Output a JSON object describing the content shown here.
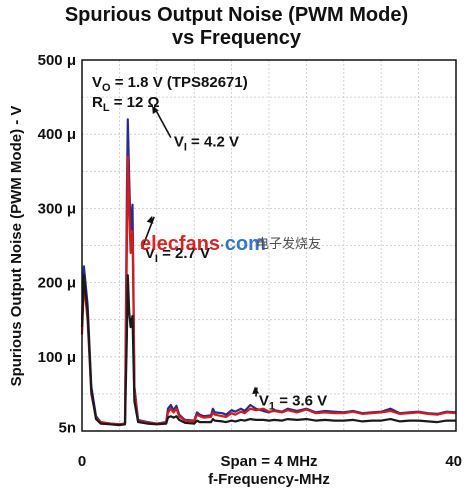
{
  "chart_data": {
    "type": "line",
    "title": [
      "Spurious Output Noise (PWM Mode)",
      "vs Frequency"
    ],
    "ylabel": "Spurious Output Noise (PWM Mode) - V",
    "xlabel": "f-Frequency-MHz",
    "span_label": "Span = 4 MHz",
    "xlim": [
      0,
      40
    ],
    "ylim": [
      0,
      500
    ],
    "y_ticks": [
      {
        "value": 500,
        "label": "500 μ"
      },
      {
        "value": 400,
        "label": "400 μ"
      },
      {
        "value": 300,
        "label": "300 μ"
      },
      {
        "value": 200,
        "label": "200 μ"
      },
      {
        "value": 100,
        "label": "100 μ"
      },
      {
        "value": 5,
        "label": "5n"
      }
    ],
    "x_ticks": [
      {
        "value": 0,
        "label": "0"
      },
      {
        "value": 40,
        "label": "40"
      }
    ],
    "grid": true,
    "conditions": [
      {
        "main": "V",
        "sub": "O",
        "rest": " = 1.8 V (TPS82671)"
      },
      {
        "main": "R",
        "sub": "L",
        "rest": " = 12 Ω"
      }
    ],
    "annotations": [
      {
        "main": "V",
        "sub": "I",
        "rest": " = 4.2 V",
        "x": 9.5,
        "y": 390,
        "tx": 7.5,
        "ty": 438
      },
      {
        "main": "V",
        "sub": "I",
        "rest": " = 2.7 V",
        "x": 6.4,
        "y": 240,
        "tx": 7.5,
        "ty": 290
      },
      {
        "main": "V",
        "sub": "1",
        "rest": " = 3.6 V",
        "x": 18.6,
        "y": 41,
        "tx": 18.5,
        "ty": 60
      }
    ],
    "series": [
      {
        "color": "#2b2b8f",
        "points": [
          [
            0,
            150
          ],
          [
            0.2,
            222
          ],
          [
            0.6,
            170
          ],
          [
            1,
            60
          ],
          [
            1.5,
            20
          ],
          [
            2,
            12
          ],
          [
            3,
            10
          ],
          [
            4,
            9
          ],
          [
            4.6,
            10
          ],
          [
            4.8,
            320
          ],
          [
            4.9,
            420
          ],
          [
            5.05,
            340
          ],
          [
            5.2,
            270
          ],
          [
            5.3,
            290
          ],
          [
            5.4,
            305
          ],
          [
            5.5,
            200
          ],
          [
            5.6,
            60
          ],
          [
            6,
            15
          ],
          [
            7,
            12
          ],
          [
            8,
            10
          ],
          [
            9,
            12
          ],
          [
            9.2,
            30
          ],
          [
            9.5,
            35
          ],
          [
            9.8,
            28
          ],
          [
            10.1,
            34
          ],
          [
            10.4,
            22
          ],
          [
            11,
            15
          ],
          [
            12,
            14
          ],
          [
            12.3,
            25
          ],
          [
            12.6,
            22
          ],
          [
            13,
            20
          ],
          [
            13.8,
            21
          ],
          [
            14,
            30
          ],
          [
            14.2,
            25
          ],
          [
            15,
            24
          ],
          [
            15.4,
            22
          ],
          [
            16,
            28
          ],
          [
            16.4,
            26
          ],
          [
            17,
            30
          ],
          [
            17.4,
            27
          ],
          [
            18,
            35
          ],
          [
            18.6,
            30
          ],
          [
            19.4,
            27
          ],
          [
            20,
            25
          ],
          [
            20.6,
            28
          ],
          [
            21.4,
            26
          ],
          [
            22,
            30
          ],
          [
            23,
            27
          ],
          [
            24,
            30
          ],
          [
            25,
            25
          ],
          [
            26,
            27
          ],
          [
            27,
            26
          ],
          [
            28,
            25
          ],
          [
            29,
            27
          ],
          [
            30,
            24
          ],
          [
            31,
            25
          ],
          [
            32,
            26
          ],
          [
            33,
            30
          ],
          [
            34,
            24
          ],
          [
            35,
            25
          ],
          [
            36,
            26
          ],
          [
            37,
            24
          ],
          [
            38,
            23
          ],
          [
            39,
            26
          ],
          [
            40,
            25
          ]
        ]
      },
      {
        "color": "#d21c1c",
        "points": [
          [
            0,
            130
          ],
          [
            0.2,
            200
          ],
          [
            0.6,
            150
          ],
          [
            1,
            50
          ],
          [
            1.5,
            18
          ],
          [
            2,
            12
          ],
          [
            3,
            10
          ],
          [
            4,
            9
          ],
          [
            4.6,
            10
          ],
          [
            4.8,
            250
          ],
          [
            4.9,
            370
          ],
          [
            5.05,
            300
          ],
          [
            5.2,
            240
          ],
          [
            5.3,
            260
          ],
          [
            5.4,
            270
          ],
          [
            5.5,
            180
          ],
          [
            5.6,
            55
          ],
          [
            6,
            14
          ],
          [
            7,
            11
          ],
          [
            8,
            10
          ],
          [
            9,
            11
          ],
          [
            9.2,
            25
          ],
          [
            9.5,
            30
          ],
          [
            9.8,
            25
          ],
          [
            10.1,
            30
          ],
          [
            10.4,
            20
          ],
          [
            11,
            14
          ],
          [
            12,
            13
          ],
          [
            12.3,
            22
          ],
          [
            12.6,
            20
          ],
          [
            13,
            18
          ],
          [
            13.8,
            19
          ],
          [
            14,
            25
          ],
          [
            14.2,
            22
          ],
          [
            15,
            20
          ],
          [
            15.4,
            19
          ],
          [
            16,
            24
          ],
          [
            16.4,
            22
          ],
          [
            17,
            26
          ],
          [
            17.4,
            24
          ],
          [
            18,
            30
          ],
          [
            18.6,
            28
          ],
          [
            19.4,
            30
          ],
          [
            20,
            26
          ],
          [
            20.6,
            27
          ],
          [
            21.4,
            25
          ],
          [
            22,
            28
          ],
          [
            23,
            25
          ],
          [
            24,
            29
          ],
          [
            25,
            24
          ],
          [
            26,
            25
          ],
          [
            27,
            24
          ],
          [
            28,
            24
          ],
          [
            29,
            26
          ],
          [
            30,
            23
          ],
          [
            31,
            24
          ],
          [
            32,
            25
          ],
          [
            33,
            27
          ],
          [
            34,
            23
          ],
          [
            35,
            24
          ],
          [
            36,
            25
          ],
          [
            37,
            23
          ],
          [
            38,
            22
          ],
          [
            39,
            25
          ],
          [
            40,
            24
          ]
        ]
      },
      {
        "color": "#1a1a1a",
        "points": [
          [
            0,
            140
          ],
          [
            0.2,
            210
          ],
          [
            0.6,
            160
          ],
          [
            1,
            55
          ],
          [
            1.5,
            16
          ],
          [
            2,
            10
          ],
          [
            3,
            9
          ],
          [
            4,
            8
          ],
          [
            4.6,
            9
          ],
          [
            4.8,
            130
          ],
          [
            4.9,
            210
          ],
          [
            5.05,
            160
          ],
          [
            5.2,
            140
          ],
          [
            5.3,
            150
          ],
          [
            5.4,
            155
          ],
          [
            5.5,
            100
          ],
          [
            5.6,
            40
          ],
          [
            6,
            12
          ],
          [
            7,
            10
          ],
          [
            8,
            9
          ],
          [
            9,
            10
          ],
          [
            9.2,
            18
          ],
          [
            9.5,
            20
          ],
          [
            9.8,
            18
          ],
          [
            10.1,
            20
          ],
          [
            10.4,
            15
          ],
          [
            11,
            11
          ],
          [
            12,
            10
          ],
          [
            12.3,
            14
          ],
          [
            12.6,
            12
          ],
          [
            13,
            12
          ],
          [
            13.8,
            12
          ],
          [
            14,
            16
          ],
          [
            14.2,
            14
          ],
          [
            15,
            13
          ],
          [
            15.4,
            12
          ],
          [
            16,
            14
          ],
          [
            16.4,
            13
          ],
          [
            17,
            15
          ],
          [
            17.4,
            14
          ],
          [
            18,
            16
          ],
          [
            18.6,
            15
          ],
          [
            19.4,
            15
          ],
          [
            20,
            14
          ],
          [
            20.6,
            15
          ],
          [
            21.4,
            14
          ],
          [
            22,
            16
          ],
          [
            23,
            15
          ],
          [
            24,
            16
          ],
          [
            25,
            14
          ],
          [
            26,
            15
          ],
          [
            27,
            14
          ],
          [
            28,
            14
          ],
          [
            29,
            15
          ],
          [
            30,
            13
          ],
          [
            31,
            14
          ],
          [
            32,
            14
          ],
          [
            33,
            16
          ],
          [
            34,
            13
          ],
          [
            35,
            14
          ],
          [
            36,
            14
          ],
          [
            37,
            13
          ],
          [
            38,
            12
          ],
          [
            39,
            14
          ],
          [
            40,
            14
          ]
        ]
      }
    ]
  },
  "watermark": {
    "en_prefix": "elecfans",
    "en_suffix": "com",
    "cn": "电子发烧友"
  }
}
